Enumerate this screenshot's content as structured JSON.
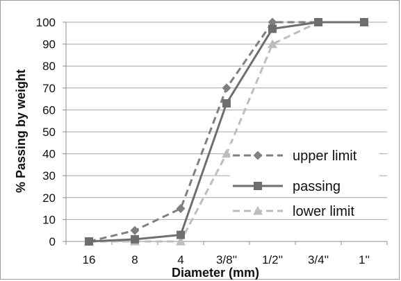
{
  "chart_data": {
    "type": "line",
    "xlabel": "Diameter (mm)",
    "ylabel": "% Passing by weight",
    "categories": [
      "16",
      "8",
      "4",
      "3/8''",
      "1/2''",
      "3/4''",
      "1''"
    ],
    "ylim": [
      0,
      100
    ],
    "ytick_step": 10,
    "grid": "horizontal",
    "legend_position": "right",
    "series": [
      {
        "name": "upper limit",
        "values": [
          0,
          5,
          15,
          70,
          100,
          100,
          100
        ],
        "color": "#7f7f7f",
        "marker": "diamond",
        "line": "dashed"
      },
      {
        "name": "passing",
        "values": [
          0,
          1,
          3,
          63,
          97,
          100,
          100
        ],
        "color": "#6e6e6e",
        "marker": "square",
        "line": "solid"
      },
      {
        "name": "lower limit",
        "values": [
          0,
          0,
          0,
          40,
          90,
          100,
          100
        ],
        "color": "#bdbdbd",
        "marker": "triangle",
        "line": "dashed"
      }
    ]
  }
}
